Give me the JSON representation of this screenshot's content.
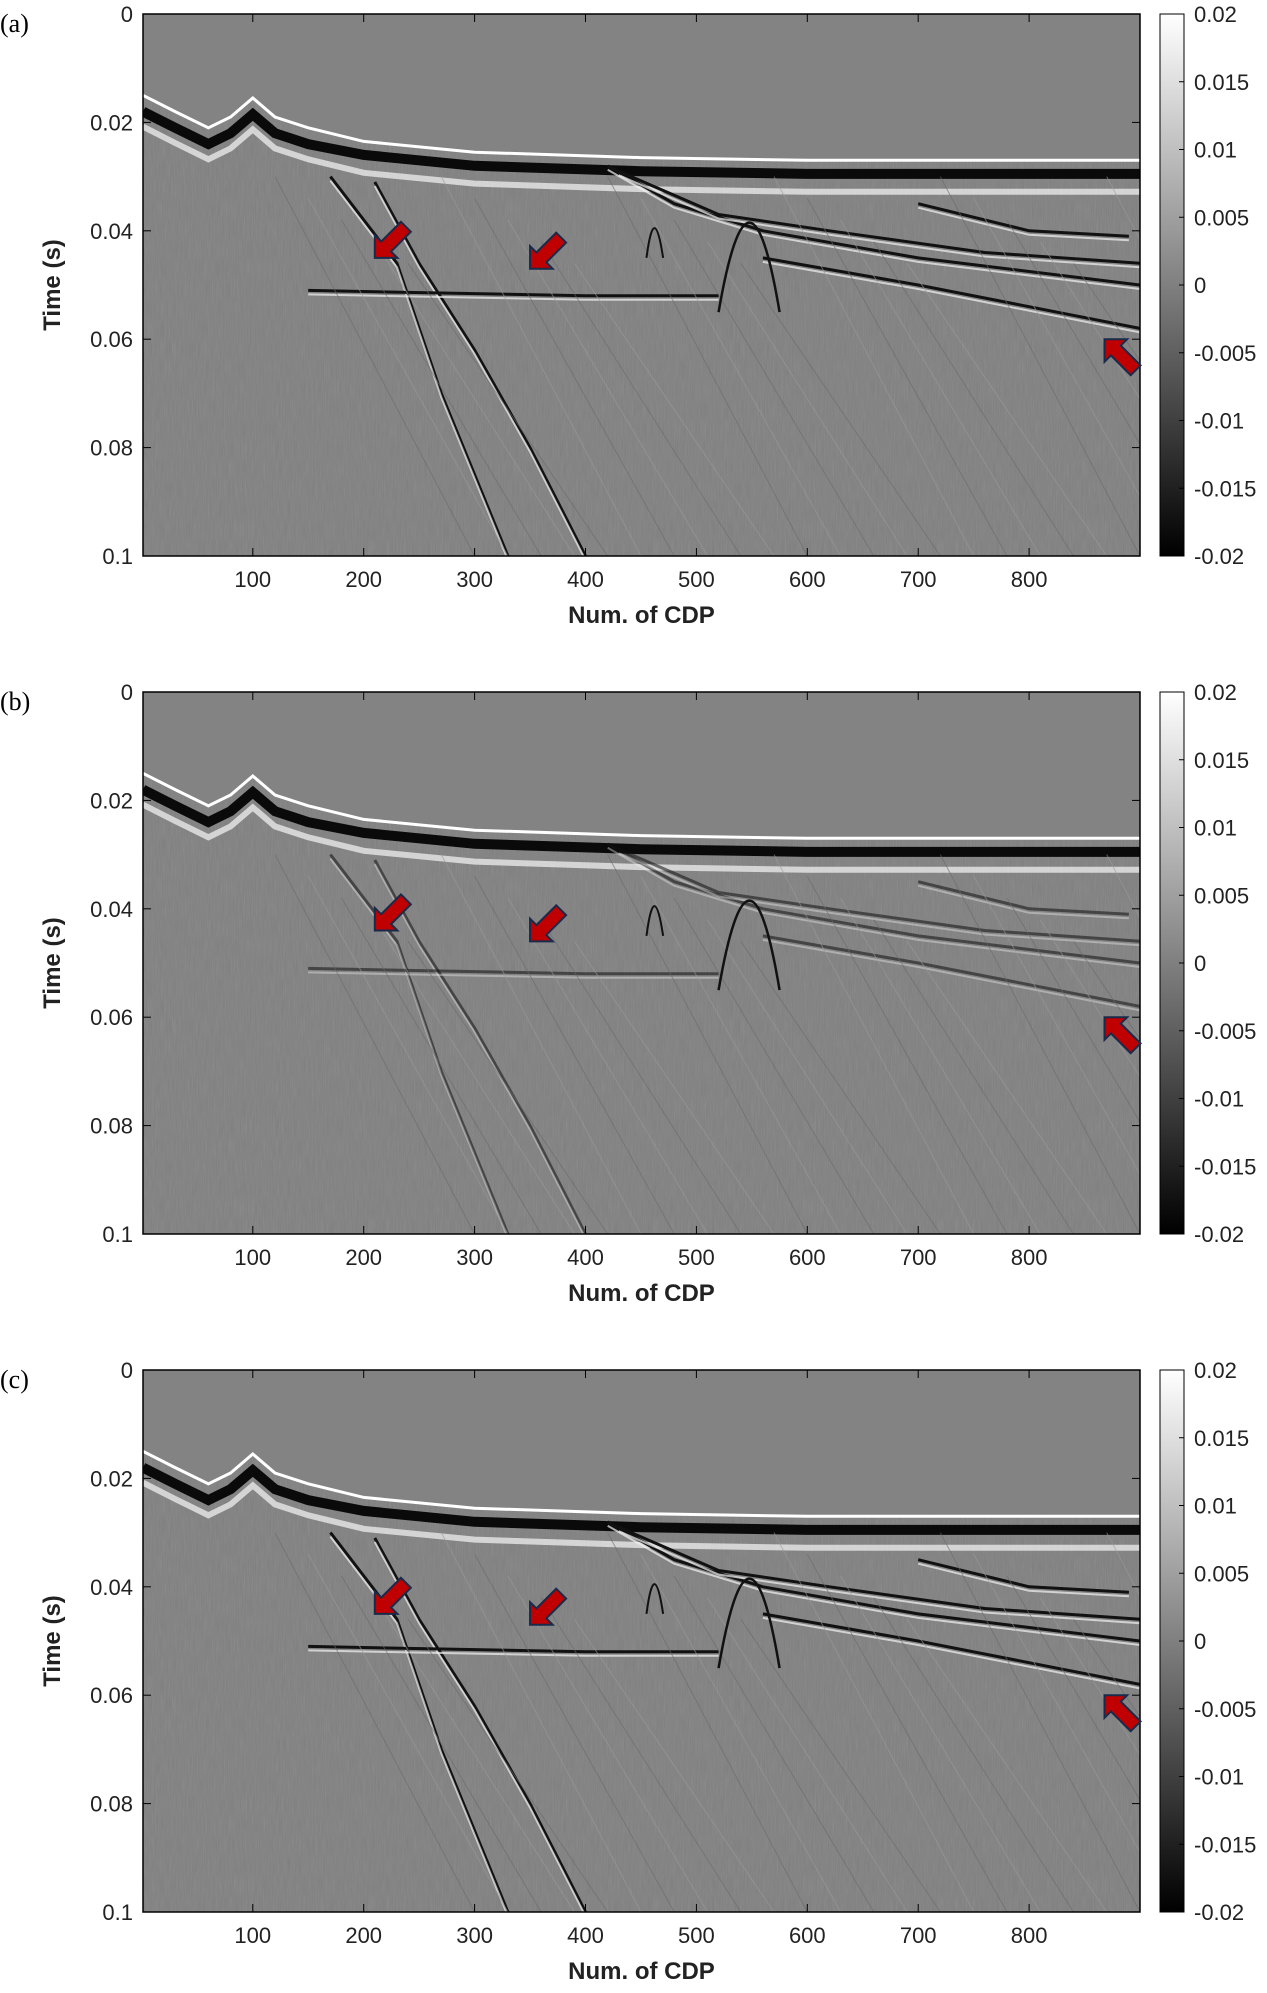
{
  "chart_data": [
    {
      "type": "heatmap",
      "panel_label": "(a)",
      "xlabel": "Num. of CDP",
      "ylabel": "Time (s)",
      "xlim": [
        1,
        900
      ],
      "ylim": [
        0,
        0.1
      ],
      "y_reversed": true,
      "x_ticks": [
        "100",
        "200",
        "300",
        "400",
        "500",
        "600",
        "700",
        "800"
      ],
      "y_ticks": [
        "0",
        "0.02",
        "0.04",
        "0.06",
        "0.08",
        "0.1"
      ],
      "colorbar": {
        "range": [
          -0.02,
          0.02
        ],
        "colormap": "gray",
        "ticks": [
          "0.02",
          "0.015",
          "0.01",
          "0.005",
          "0",
          "-0.005",
          "-0.01",
          "-0.015",
          "-0.02"
        ]
      },
      "annotations": [
        {
          "type": "arrow",
          "color": "#c00000",
          "cdp": 210,
          "time": 0.045
        },
        {
          "type": "arrow",
          "color": "#c00000",
          "cdp": 350,
          "time": 0.047
        },
        {
          "type": "arrow",
          "color": "#c00000",
          "cdp": 868,
          "time": 0.06
        }
      ]
    },
    {
      "type": "heatmap",
      "panel_label": "(b)",
      "xlabel": "Num. of CDP",
      "ylabel": "Time (s)",
      "xlim": [
        1,
        900
      ],
      "ylim": [
        0,
        0.1
      ],
      "y_reversed": true,
      "x_ticks": [
        "100",
        "200",
        "300",
        "400",
        "500",
        "600",
        "700",
        "800"
      ],
      "y_ticks": [
        "0",
        "0.02",
        "0.04",
        "0.06",
        "0.08",
        "0.1"
      ],
      "colorbar": {
        "range": [
          -0.02,
          0.02
        ],
        "colormap": "gray",
        "ticks": [
          "0.02",
          "0.015",
          "0.01",
          "0.005",
          "0",
          "-0.005",
          "-0.01",
          "-0.015",
          "-0.02"
        ]
      },
      "annotations": [
        {
          "type": "arrow",
          "color": "#c00000",
          "cdp": 210,
          "time": 0.044
        },
        {
          "type": "arrow",
          "color": "#c00000",
          "cdp": 350,
          "time": 0.046
        },
        {
          "type": "arrow",
          "color": "#c00000",
          "cdp": 868,
          "time": 0.06
        }
      ]
    },
    {
      "type": "heatmap",
      "panel_label": "(c)",
      "xlabel": "Num. of CDP",
      "ylabel": "Time (s)",
      "xlim": [
        1,
        900
      ],
      "ylim": [
        0,
        0.1
      ],
      "y_reversed": true,
      "x_ticks": [
        "100",
        "200",
        "300",
        "400",
        "500",
        "600",
        "700",
        "800"
      ],
      "y_ticks": [
        "0",
        "0.02",
        "0.04",
        "0.06",
        "0.08",
        "0.1"
      ],
      "colorbar": {
        "range": [
          -0.02,
          0.02
        ],
        "colormap": "gray",
        "ticks": [
          "0.02",
          "0.015",
          "0.01",
          "0.005",
          "0",
          "-0.005",
          "-0.01",
          "-0.015",
          "-0.02"
        ]
      },
      "annotations": [
        {
          "type": "arrow",
          "color": "#c00000",
          "cdp": 210,
          "time": 0.045
        },
        {
          "type": "arrow",
          "color": "#c00000",
          "cdp": 350,
          "time": 0.047
        },
        {
          "type": "arrow",
          "color": "#c00000",
          "cdp": 868,
          "time": 0.06
        }
      ]
    }
  ]
}
